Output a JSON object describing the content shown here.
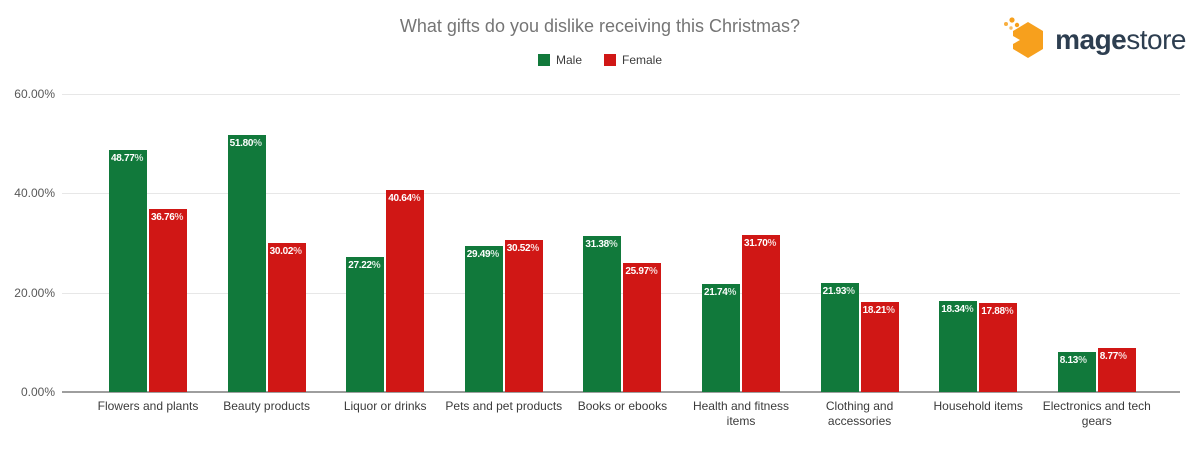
{
  "header": {
    "logo": {
      "text_bold": "mage",
      "text_regular": "store",
      "icon": "hexagon-honeycomb",
      "orange": "#F7A01D",
      "navy": "#2D3E50"
    }
  },
  "chart_data": {
    "type": "bar",
    "title": "What gifts do you dislike receiving this Christmas?",
    "categories": [
      "Flowers and plants",
      "Beauty products",
      "Liquor or drinks",
      "Pets and pet products",
      "Books or ebooks",
      "Health and fitness items",
      "Clothing and accessories",
      "Household items",
      "Electronics and tech gears"
    ],
    "series": [
      {
        "name": "Male",
        "color": "#11793B",
        "values": [
          48.77,
          51.8,
          27.22,
          29.49,
          31.38,
          21.74,
          21.93,
          18.34,
          8.13
        ]
      },
      {
        "name": "Female",
        "color": "#D01715",
        "values": [
          36.76,
          30.02,
          40.64,
          30.52,
          25.97,
          31.7,
          18.21,
          17.88,
          8.77
        ]
      }
    ],
    "value_label_format": "0.00%",
    "y_ticks": [
      {
        "label": "0.00%",
        "value": 0
      },
      {
        "label": "20.00%",
        "value": 20
      },
      {
        "label": "40.00%",
        "value": 40
      },
      {
        "label": "60.00%",
        "value": 60
      }
    ],
    "ylim": [
      0,
      60
    ],
    "grid": true,
    "legend_position": "top"
  }
}
